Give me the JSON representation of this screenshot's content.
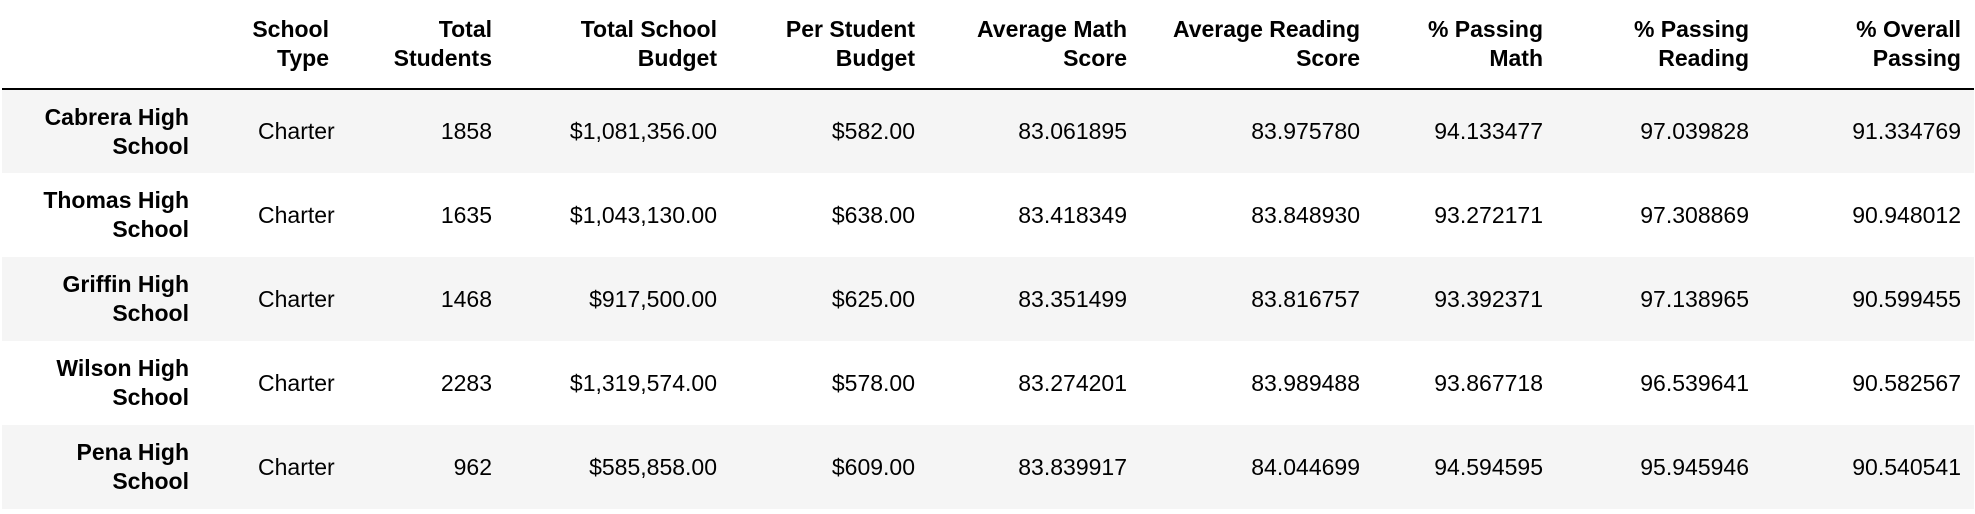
{
  "table": {
    "index_header": "",
    "columns": [
      "School Type",
      "Total Students",
      "Total School Budget",
      "Per Student Budget",
      "Average Math Score",
      "Average Reading Score",
      "% Passing Math",
      "% Passing Reading",
      "% Overall Passing"
    ],
    "rows": [
      {
        "school": "Cabrera High School",
        "cells": [
          "Charter",
          "1858",
          "$1,081,356.00",
          "$582.00",
          "83.061895",
          "83.975780",
          "94.133477",
          "97.039828",
          "91.334769"
        ]
      },
      {
        "school": "Thomas High School",
        "cells": [
          "Charter",
          "1635",
          "$1,043,130.00",
          "$638.00",
          "83.418349",
          "83.848930",
          "93.272171",
          "97.308869",
          "90.948012"
        ]
      },
      {
        "school": "Griffin High School",
        "cells": [
          "Charter",
          "1468",
          "$917,500.00",
          "$625.00",
          "83.351499",
          "83.816757",
          "93.392371",
          "97.138965",
          "90.599455"
        ]
      },
      {
        "school": "Wilson High School",
        "cells": [
          "Charter",
          "2283",
          "$1,319,574.00",
          "$578.00",
          "83.274201",
          "83.989488",
          "93.867718",
          "96.539641",
          "90.582567"
        ]
      },
      {
        "school": "Pena High School",
        "cells": [
          "Charter",
          "962",
          "$585,858.00",
          "$609.00",
          "83.839917",
          "84.044699",
          "94.594595",
          "95.945946",
          "90.540541"
        ]
      }
    ]
  }
}
